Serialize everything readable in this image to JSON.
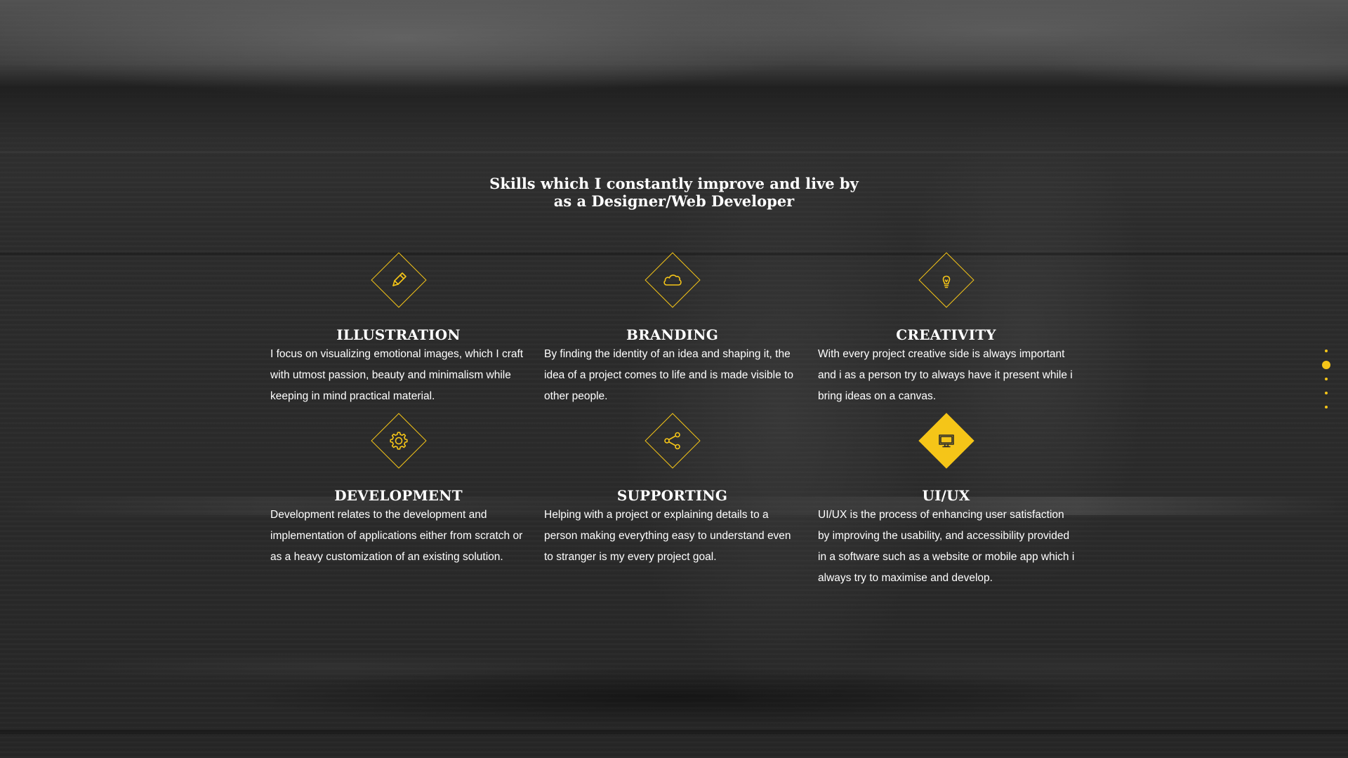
{
  "heading": {
    "line1": "Skills which I constantly improve and live by",
    "line2": "as a Designer/Web Developer"
  },
  "colors": {
    "accent": "#f5c518",
    "text": "#ffffff",
    "background": "#2a2a2a"
  },
  "skills": [
    {
      "title": "ILLUSTRATION",
      "icon": "pencil-icon",
      "description": "I focus on visualizing emotional images, which I craft with utmost passion, beauty and minimalism while keeping in mind practical material."
    },
    {
      "title": "BRANDING",
      "icon": "cloud-icon",
      "description": "By finding the identity of an idea and shaping it, the idea of a project comes to life and is made visible to other people."
    },
    {
      "title": "CREATIVITY",
      "icon": "lightbulb-icon",
      "description": "With every project creative side is always important and i as a person try to always have it present while i bring ideas on a canvas."
    },
    {
      "title": "DEVELOPMENT",
      "icon": "gear-icon",
      "description": "Development relates to the development and implementation of applications either from scratch or as a heavy customization of an existing solution."
    },
    {
      "title": "SUPPORTING",
      "icon": "share-icon",
      "description": "Helping with a project or explaining details to a person making everything easy to understand even to stranger is my every project goal."
    },
    {
      "title": "UI/UX",
      "icon": "monitor-icon",
      "description": "UI/UX is the process of enhancing user satisfaction by improving the usability, and accessibility provided in a software such as a website or mobile app which i always try to maximise and develop."
    }
  ],
  "page_nav": {
    "count": 5,
    "active_index": 1
  }
}
